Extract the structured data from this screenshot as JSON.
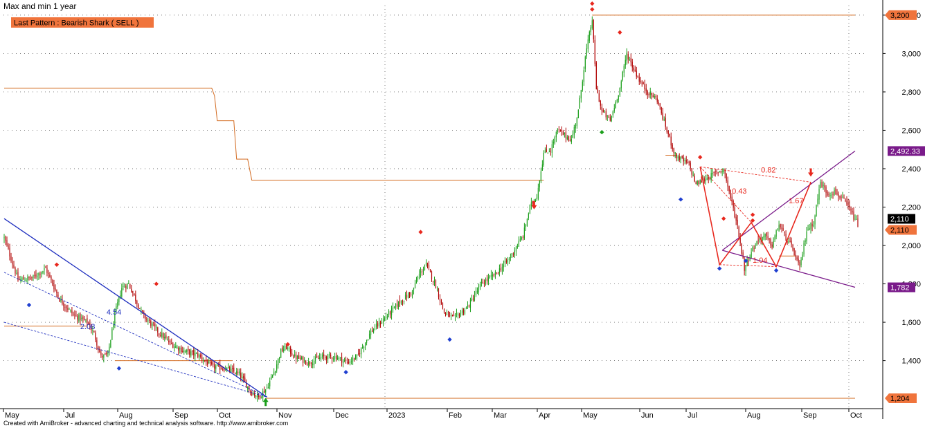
{
  "header": {
    "title": "Max and min 1 year",
    "pattern_badge": "Last Pattern : Bearish Shark ( SELL )"
  },
  "footer": {
    "credit": "Created with AmiBroker - advanced charting and technical analysis software. http://www.amibroker.com"
  },
  "colors": {
    "up": "#1a9e1a",
    "down": "#b00000",
    "orange": "#d2691e",
    "blue": "#1f2fbf",
    "purple": "#7a1b8a",
    "red": "#e8281e",
    "badge": "#f0743c"
  },
  "chart_data": {
    "type": "candlestick",
    "y_range": [
      1150,
      3250
    ],
    "y_ticks": [
      "1,400",
      "1,600",
      "1,800",
      "2,000",
      "2,200",
      "2,400",
      "2,600",
      "2,800",
      "3,000",
      "3,200"
    ],
    "x_labels": [
      "May",
      "Jul",
      "Aug",
      "Sep",
      "Oct",
      "Nov",
      "Dec",
      "2023",
      "Feb",
      "Mar",
      "Apr",
      "May",
      "Jun",
      "Jul",
      "Aug",
      "Sep",
      "Oct"
    ],
    "price_tags": [
      {
        "text": "3,200",
        "price": 3200,
        "kind": "orange"
      },
      {
        "text": "2,492.33",
        "price": 2492,
        "kind": "purple"
      },
      {
        "text": "2,110",
        "price": 2110,
        "kind": "black"
      },
      {
        "text": "2,110",
        "price": 2110,
        "kind": "orange"
      },
      {
        "text": "1,782",
        "price": 1782,
        "kind": "purple"
      },
      {
        "text": "1,204",
        "price": 1204,
        "kind": "orange"
      }
    ],
    "anchors": [
      [
        0,
        2040
      ],
      [
        10,
        1820
      ],
      [
        20,
        1830
      ],
      [
        30,
        1880
      ],
      [
        40,
        1720
      ],
      [
        50,
        1640
      ],
      [
        60,
        1600
      ],
      [
        65,
        1540
      ],
      [
        70,
        1420
      ],
      [
        75,
        1430
      ],
      [
        80,
        1640
      ],
      [
        85,
        1780
      ],
      [
        90,
        1800
      ],
      [
        95,
        1720
      ],
      [
        100,
        1640
      ],
      [
        110,
        1560
      ],
      [
        120,
        1490
      ],
      [
        130,
        1450
      ],
      [
        140,
        1430
      ],
      [
        150,
        1370
      ],
      [
        160,
        1360
      ],
      [
        170,
        1330
      ],
      [
        178,
        1240
      ],
      [
        184,
        1210
      ],
      [
        190,
        1260
      ],
      [
        196,
        1360
      ],
      [
        200,
        1450
      ],
      [
        204,
        1470
      ],
      [
        210,
        1420
      ],
      [
        220,
        1390
      ],
      [
        230,
        1420
      ],
      [
        240,
        1420
      ],
      [
        248,
        1390
      ],
      [
        255,
        1420
      ],
      [
        265,
        1550
      ],
      [
        275,
        1620
      ],
      [
        285,
        1700
      ],
      [
        295,
        1760
      ],
      [
        300,
        1850
      ],
      [
        305,
        1900
      ],
      [
        312,
        1790
      ],
      [
        318,
        1650
      ],
      [
        325,
        1620
      ],
      [
        335,
        1680
      ],
      [
        345,
        1800
      ],
      [
        355,
        1850
      ],
      [
        365,
        1930
      ],
      [
        375,
        2050
      ],
      [
        380,
        2200
      ],
      [
        385,
        2260
      ],
      [
        390,
        2480
      ],
      [
        395,
        2500
      ],
      [
        400,
        2600
      ],
      [
        410,
        2550
      ],
      [
        415,
        2700
      ],
      [
        420,
        2980
      ],
      [
        425,
        3180
      ],
      [
        428,
        2820
      ],
      [
        432,
        2700
      ],
      [
        438,
        2650
      ],
      [
        445,
        2820
      ],
      [
        450,
        3000
      ],
      [
        455,
        2920
      ],
      [
        460,
        2850
      ],
      [
        465,
        2800
      ],
      [
        472,
        2760
      ],
      [
        478,
        2620
      ],
      [
        485,
        2470
      ],
      [
        495,
        2420
      ],
      [
        500,
        2320
      ],
      [
        510,
        2360
      ],
      [
        520,
        2400
      ],
      [
        530,
        2100
      ],
      [
        535,
        1880
      ],
      [
        540,
        1970
      ],
      [
        545,
        2030
      ],
      [
        550,
        2050
      ],
      [
        555,
        2000
      ],
      [
        560,
        2110
      ],
      [
        565,
        2040
      ],
      [
        570,
        1980
      ],
      [
        575,
        1880
      ],
      [
        580,
        2080
      ],
      [
        585,
        2120
      ],
      [
        590,
        2330
      ],
      [
        595,
        2270
      ],
      [
        600,
        2280
      ],
      [
        605,
        2250
      ],
      [
        610,
        2200
      ],
      [
        617,
        2110
      ]
    ],
    "total_bars": 618,
    "markers": [
      {
        "bar": 38,
        "price": 1900,
        "type": "top"
      },
      {
        "bar": 18,
        "price": 1690,
        "type": "bot"
      },
      {
        "bar": 110,
        "price": 1800,
        "type": "top"
      },
      {
        "bar": 83,
        "price": 1360,
        "type": "bot"
      },
      {
        "bar": 205,
        "price": 1485,
        "type": "top"
      },
      {
        "bar": 247,
        "price": 1340,
        "type": "bot"
      },
      {
        "bar": 301,
        "price": 2070,
        "type": "top"
      },
      {
        "bar": 322,
        "price": 1510,
        "type": "bot"
      },
      {
        "bar": 425,
        "price": 3230,
        "type": "top"
      },
      {
        "bar": 425,
        "price": 3260,
        "type": "top"
      },
      {
        "bar": 445,
        "price": 3110,
        "type": "top"
      },
      {
        "bar": 432,
        "price": 2590,
        "type": "bot"
      },
      {
        "bar": 489,
        "price": 2240,
        "type": "bot"
      },
      {
        "bar": 503,
        "price": 2460,
        "type": "top"
      },
      {
        "bar": 517,
        "price": 1880,
        "type": "bot"
      },
      {
        "bar": 520,
        "price": 2140,
        "type": "top"
      },
      {
        "bar": 541,
        "price": 2160,
        "type": "top"
      },
      {
        "bar": 541,
        "price": 2130,
        "type": "top"
      },
      {
        "bar": 536,
        "price": 1920,
        "type": "bot"
      },
      {
        "bar": 558,
        "price": 1870,
        "type": "bot"
      }
    ],
    "arrows": [
      {
        "bar": 189,
        "price": 1185,
        "dir": "up",
        "color": "green"
      },
      {
        "bar": 383,
        "price": 2210,
        "dir": "down",
        "color": "red"
      },
      {
        "bar": 583,
        "price": 2380,
        "dir": "down",
        "color": "red"
      }
    ],
    "lines": [
      {
        "color": "blue",
        "width": 1.3,
        "dash": false,
        "pts": [
          [
            0,
            2140
          ],
          [
            190,
            1210
          ]
        ]
      },
      {
        "color": "blue",
        "width": 0.9,
        "dash": true,
        "pts": [
          [
            0,
            1860
          ],
          [
            190,
            1210
          ]
        ]
      },
      {
        "color": "blue",
        "width": 0.9,
        "dash": true,
        "pts": [
          [
            0,
            1600
          ],
          [
            190,
            1210
          ]
        ]
      },
      {
        "color": "purple",
        "width": 1.3,
        "dash": false,
        "pts": [
          [
            519,
            1975
          ],
          [
            615,
            2492
          ]
        ]
      },
      {
        "color": "purple",
        "width": 1.3,
        "dash": false,
        "pts": [
          [
            519,
            1975
          ],
          [
            615,
            1782
          ]
        ]
      },
      {
        "color": "red",
        "width": 1.6,
        "dash": false,
        "pts": [
          [
            503,
            2410
          ],
          [
            517,
            1900
          ],
          [
            540,
            2120
          ],
          [
            558,
            1890
          ],
          [
            583,
            2330
          ]
        ]
      },
      {
        "color": "red",
        "width": 0.9,
        "dash": true,
        "pts": [
          [
            503,
            2410
          ],
          [
            583,
            2330
          ]
        ]
      },
      {
        "color": "red",
        "width": 0.9,
        "dash": true,
        "pts": [
          [
            503,
            2410
          ],
          [
            540,
            2120
          ]
        ]
      },
      {
        "color": "red",
        "width": 0.9,
        "dash": true,
        "pts": [
          [
            517,
            1900
          ],
          [
            558,
            1890
          ]
        ]
      }
    ],
    "levels": [
      {
        "pts": [
          [
            0,
            2820
          ],
          [
            150,
            2820
          ],
          [
            152,
            2780
          ],
          [
            154,
            2650
          ],
          [
            166,
            2650
          ],
          [
            168,
            2450
          ],
          [
            176,
            2450
          ],
          [
            179,
            2340
          ],
          [
            390,
            2340
          ]
        ]
      },
      {
        "pts": [
          [
            425,
            3200
          ],
          [
            615,
            3200
          ]
        ]
      },
      {
        "pts": [
          [
            189,
            1204
          ],
          [
            615,
            1204
          ]
        ]
      },
      {
        "pts": [
          [
            0,
            1580
          ],
          [
            60,
            1580
          ]
        ]
      },
      {
        "pts": [
          [
            80,
            1400
          ],
          [
            165,
            1400
          ]
        ]
      },
      {
        "pts": [
          [
            478,
            2470
          ],
          [
            486,
            2470
          ]
        ]
      },
      {
        "pts": [
          [
            560,
            1945
          ],
          [
            572,
            1945
          ]
        ]
      }
    ],
    "annotations": [
      {
        "text": "4.54",
        "bar": 74,
        "price": 1640,
        "color": "blue"
      },
      {
        "text": "2.08",
        "bar": 55,
        "price": 1565,
        "color": "blue"
      },
      {
        "text": "0.82",
        "bar": 547,
        "price": 2380,
        "color": "red"
      },
      {
        "text": "0.43",
        "bar": 526,
        "price": 2270,
        "color": "red"
      },
      {
        "text": "1.67",
        "bar": 567,
        "price": 2220,
        "color": "red"
      },
      {
        "text": "1.04",
        "bar": 541,
        "price": 1910,
        "color": "red"
      }
    ]
  }
}
